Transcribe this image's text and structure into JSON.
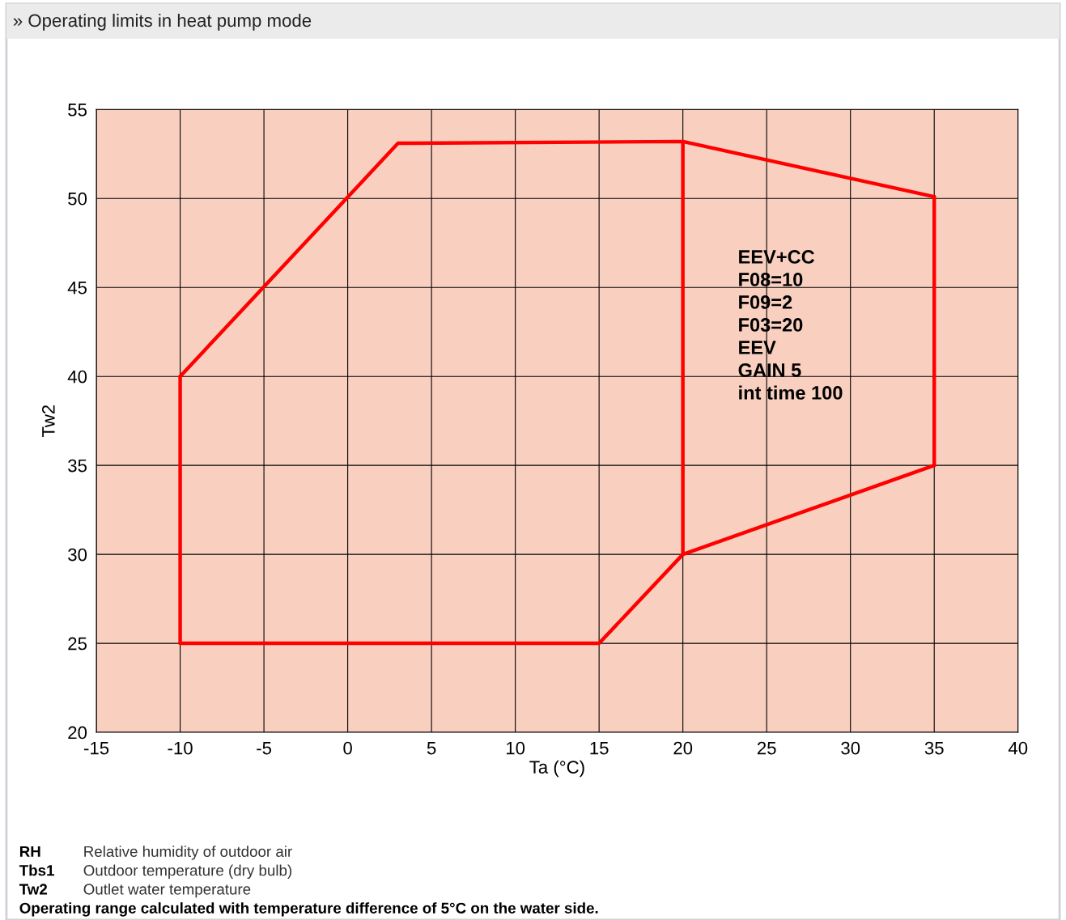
{
  "chart_data": {
    "type": "line",
    "title": "» Operating limits in heat pump mode",
    "xlabel": "Ta (°C)",
    "ylabel": "Tw2",
    "series": [
      {
        "color": "#ff0000",
        "x": [
          -10,
          3,
          20,
          35
        ],
        "values": [
          40,
          53.1,
          53.2,
          50.1
        ]
      },
      {
        "color": "#ff0000",
        "x": [
          -10,
          15,
          20,
          35
        ],
        "values": [
          25,
          25,
          30,
          35
        ]
      },
      {
        "color": "#ff0000",
        "x": [
          -10,
          -10
        ],
        "values": [
          25,
          40
        ]
      },
      {
        "color": "#ff0000",
        "x": [
          20,
          20
        ],
        "values": [
          30,
          53.2
        ]
      },
      {
        "color": "#ff0000",
        "x": [
          35,
          35
        ],
        "values": [
          35,
          50.1
        ]
      }
    ],
    "xlim": [
      -15,
      40
    ],
    "xticks": [
      -15,
      -10,
      -5,
      0,
      5,
      10,
      15,
      20,
      25,
      30,
      35,
      40
    ],
    "ylim": [
      20,
      55
    ],
    "yticks": [
      20,
      25,
      30,
      35,
      40,
      45,
      50,
      55
    ],
    "grid": true,
    "marker": "none",
    "line_style": "solid",
    "annotations": [
      "EEV+CC\nF08=10\nF09=2\nF03=20\nEEV\nGAIN 5\nint time 100",
      "RH",
      "Relative humidity of outdoor air",
      "Tbs1",
      "Outdoor temperature (dry bulb)",
      "Tw2",
      "Outlet water temperature",
      "Operating range calculated with temperature difference of 5°C on the water side."
    ]
  }
}
